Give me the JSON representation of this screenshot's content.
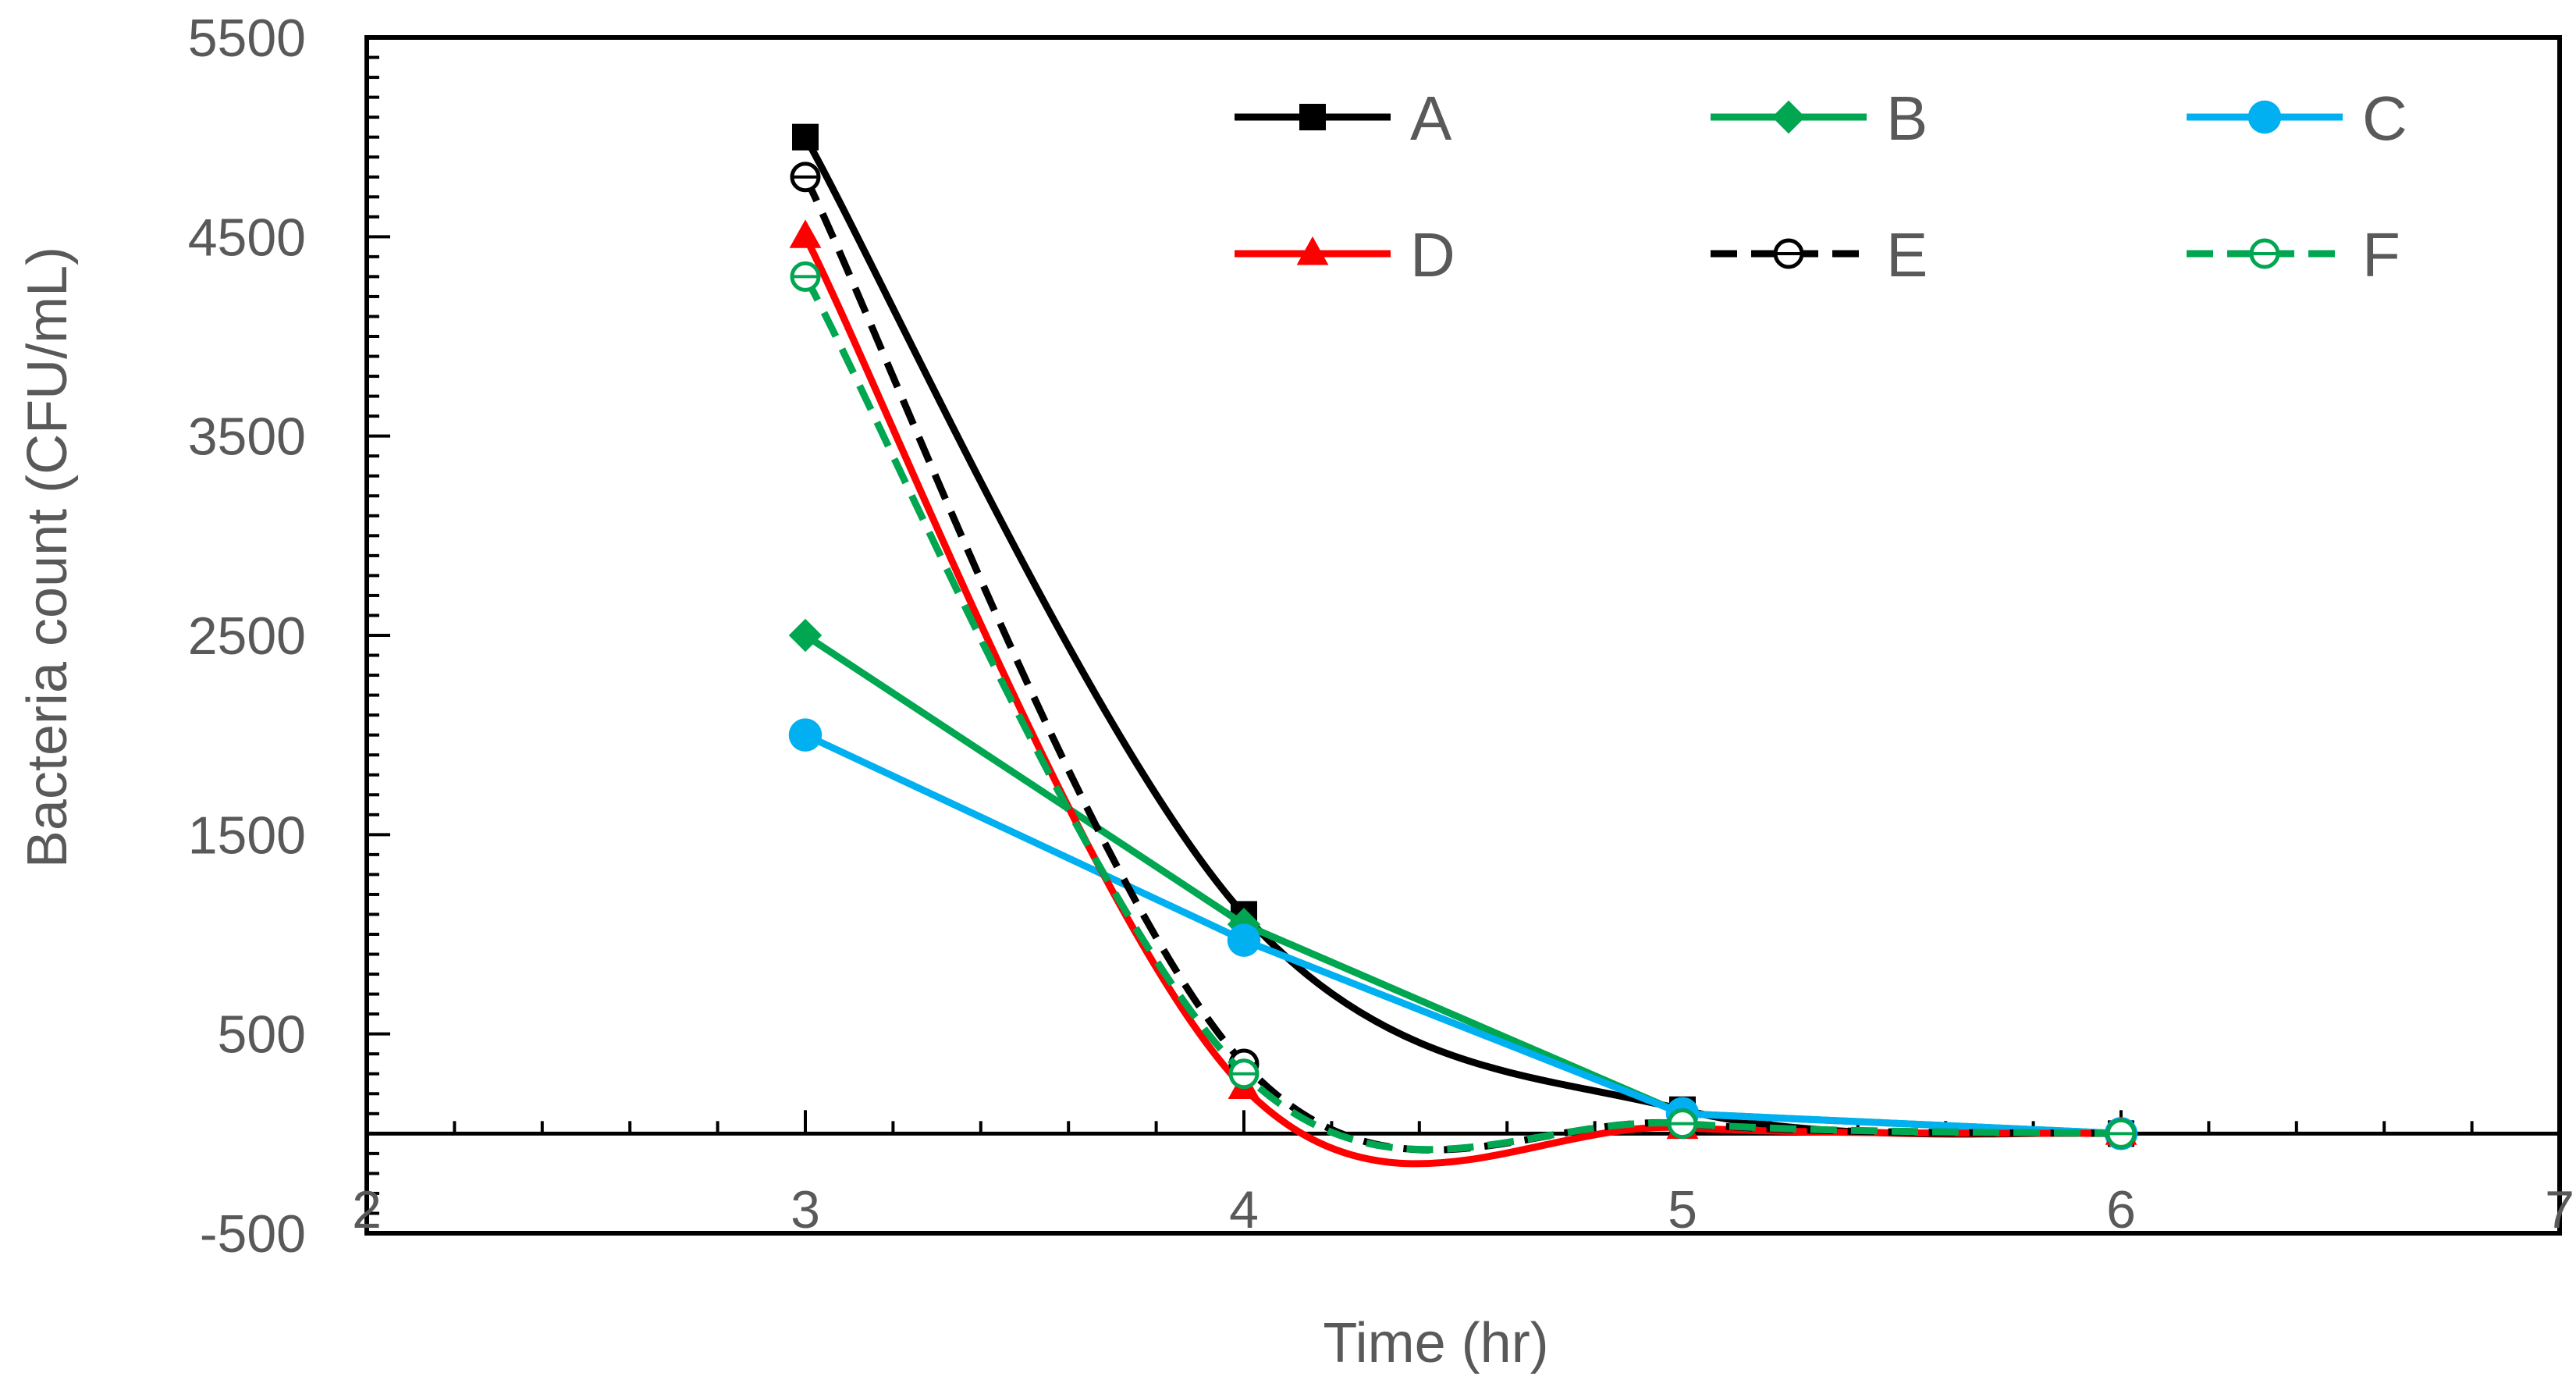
{
  "chart_data": {
    "type": "line",
    "title": "",
    "xlabel": "Time (hr)",
    "ylabel": "Bacteria count (CFU/mL)",
    "xlim": [
      2,
      7
    ],
    "ylim": [
      -500,
      5500
    ],
    "x_ticks": [
      2,
      3,
      4,
      5,
      6,
      7
    ],
    "y_ticks": [
      -500,
      500,
      1500,
      2500,
      3500,
      4500,
      5500
    ],
    "x_ticks_minor_step": 0.2,
    "y_ticks_minor_step": 100,
    "grid": false,
    "legend_position": "top-right",
    "x": [
      3,
      4,
      5,
      6
    ],
    "series": [
      {
        "name": "A",
        "values": [
          5000,
          1100,
          120,
          0
        ],
        "color": "#000000",
        "dash": "solid",
        "marker": "square",
        "marker_fill": "filled",
        "smooth": true
      },
      {
        "name": "B",
        "values": [
          2500,
          1050,
          100,
          0
        ],
        "color": "#00a650",
        "dash": "solid",
        "marker": "diamond",
        "marker_fill": "filled",
        "smooth": false
      },
      {
        "name": "C",
        "values": [
          2000,
          970,
          100,
          0
        ],
        "color": "#00b0f0",
        "dash": "solid",
        "marker": "circle",
        "marker_fill": "filled",
        "smooth": false
      },
      {
        "name": "D",
        "values": [
          4500,
          230,
          30,
          0
        ],
        "color": "#ff0000",
        "dash": "solid",
        "marker": "triangle",
        "marker_fill": "filled",
        "smooth": true
      },
      {
        "name": "E",
        "values": [
          4800,
          350,
          50,
          0
        ],
        "color": "#000000",
        "dash": "dashed",
        "marker": "circle",
        "marker_fill": "open",
        "smooth": true
      },
      {
        "name": "F",
        "values": [
          4300,
          300,
          50,
          0
        ],
        "color": "#00a650",
        "dash": "dashed",
        "marker": "circle",
        "marker_fill": "open",
        "smooth": true
      }
    ]
  }
}
